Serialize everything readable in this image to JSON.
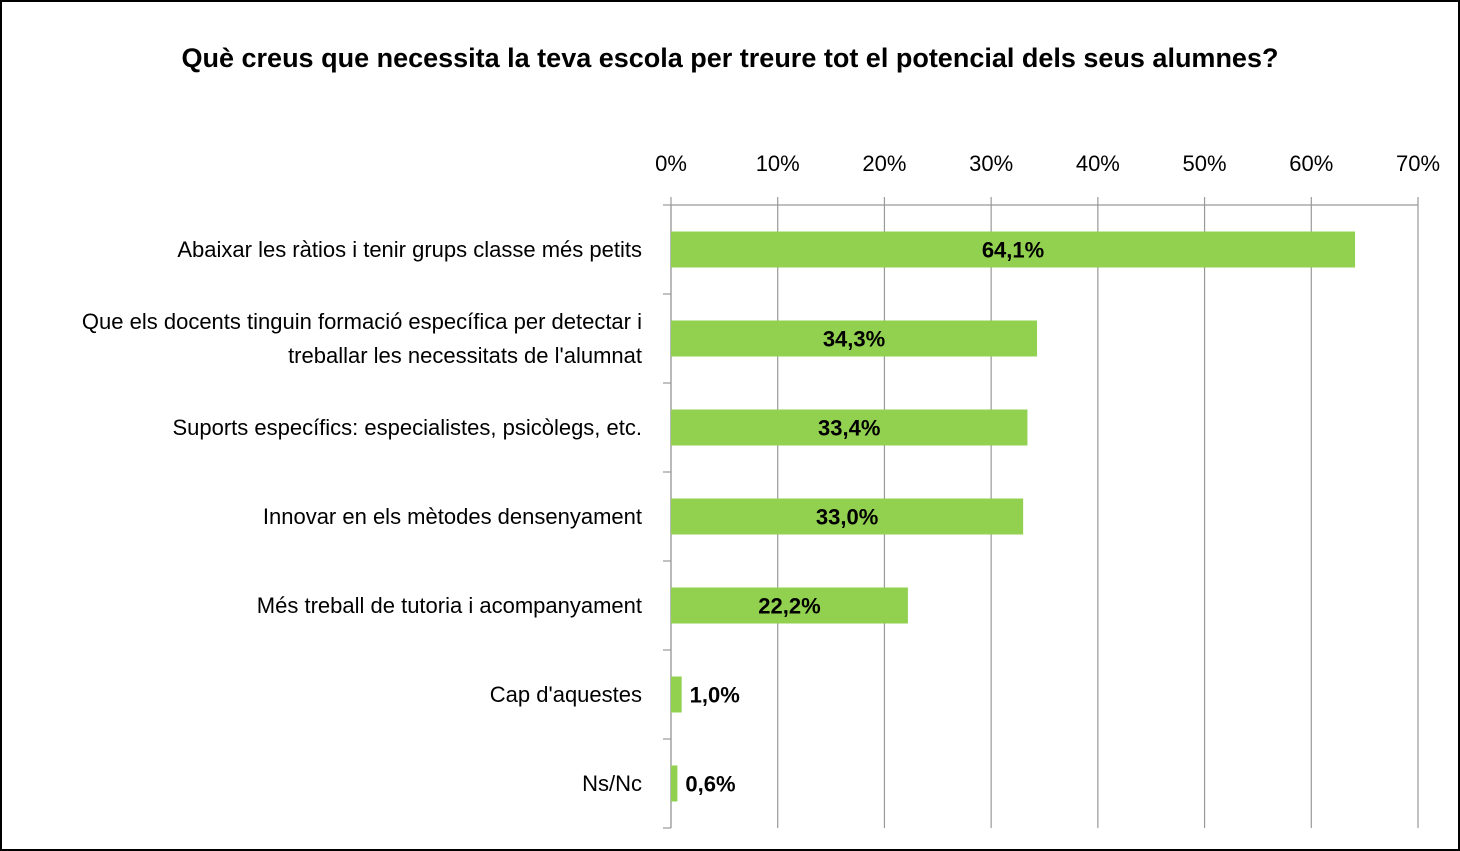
{
  "chart_data": {
    "type": "bar",
    "orientation": "horizontal",
    "title": "Què creus que necessita la teva escola per treure tot el potencial dels seus alumnes?",
    "categories": [
      "Abaixar les ràtios i tenir grups classe més petits",
      "Que els docents tinguin formació específica per detectar i treballar les necessitats de l'alumnat",
      "Suports específics: especialistes, psicòlegs, etc.",
      "Innovar en els mètodes densenyament",
      "Més treball de tutoria i acompanyament",
      "Cap d'aquestes",
      "Ns/Nc"
    ],
    "values": [
      64.1,
      34.3,
      33.4,
      33.0,
      22.2,
      1.0,
      0.6
    ],
    "value_labels": [
      "64,1%",
      "34,3%",
      "33,4%",
      "33,0%",
      "22,2%",
      "1,0%",
      "0,6%"
    ],
    "color": "#92d050",
    "xlim": [
      0,
      70
    ],
    "xticks": [
      {
        "value": 0,
        "label": "0%"
      },
      {
        "value": 10,
        "label": "10%"
      },
      {
        "value": 20,
        "label": "20%"
      },
      {
        "value": 30,
        "label": "30%"
      },
      {
        "value": 40,
        "label": "40%"
      },
      {
        "value": 50,
        "label": "50%"
      },
      {
        "value": 60,
        "label": "60%"
      },
      {
        "value": 70,
        "label": "70%"
      }
    ],
    "grid": true
  }
}
